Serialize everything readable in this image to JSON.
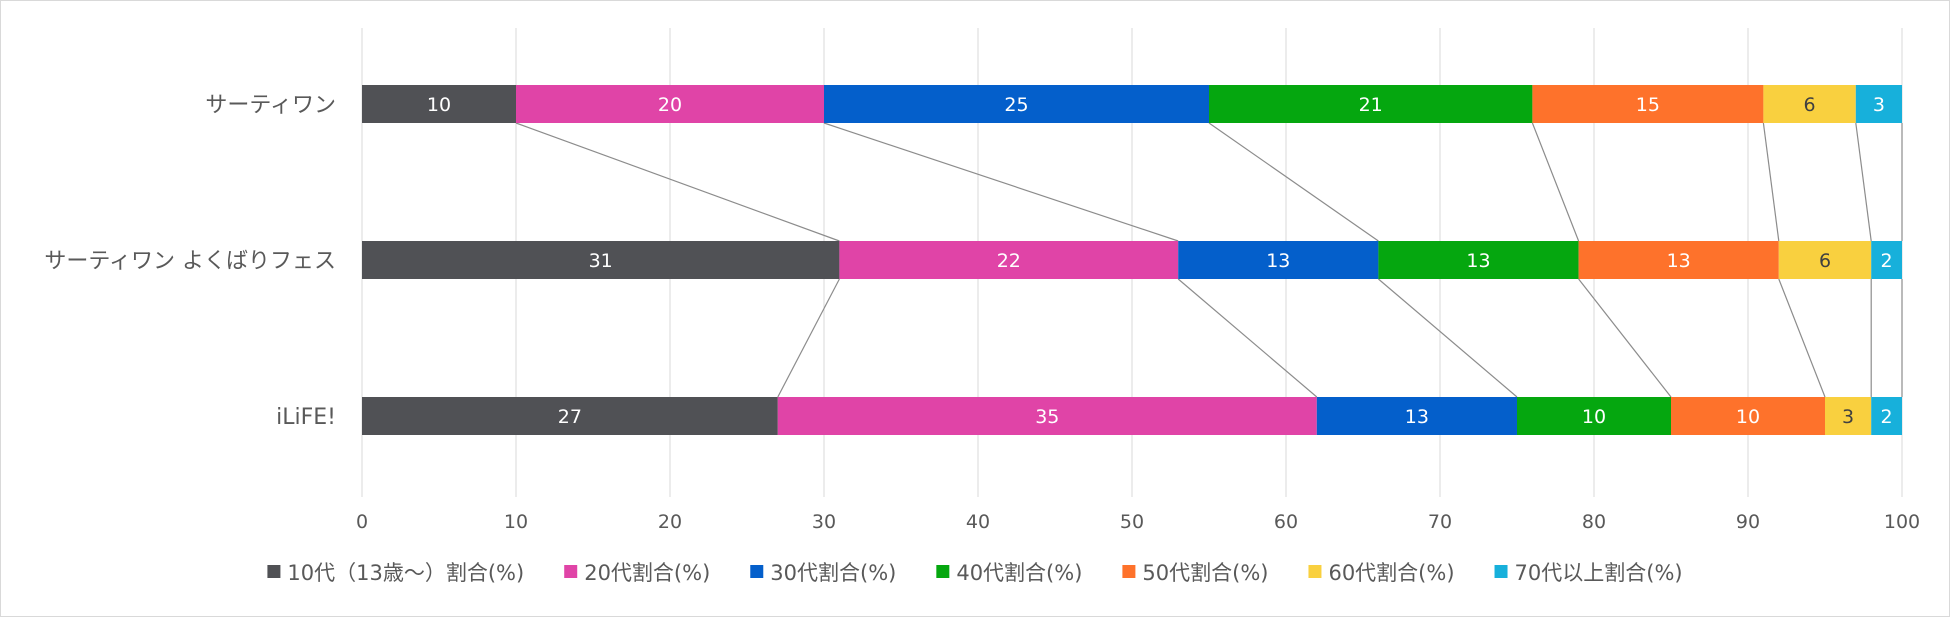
{
  "chart_data": {
    "type": "bar",
    "orientation": "horizontal",
    "stacked": true,
    "title": "",
    "xlabel": "",
    "ylabel": "",
    "xlim": [
      0,
      100
    ],
    "x_ticks": [
      0,
      10,
      20,
      30,
      40,
      50,
      60,
      70,
      80,
      90,
      100
    ],
    "grid": true,
    "series_lines": true,
    "legend_position": "bottom",
    "categories": [
      "サーティワン",
      "サーティワン よくばりフェス",
      "iLiFE!"
    ],
    "series": [
      {
        "name": "10代（13歳〜）割合(%)",
        "color": "#505155",
        "label_color": "#ffffff",
        "values": [
          10,
          31,
          27
        ]
      },
      {
        "name": "20代割合(%)",
        "color": "#e044a7",
        "label_color": "#ffffff",
        "values": [
          20,
          22,
          35
        ]
      },
      {
        "name": "30代割合(%)",
        "color": "#045fcb",
        "label_color": "#ffffff",
        "values": [
          25,
          13,
          13
        ]
      },
      {
        "name": "40代割合(%)",
        "color": "#05a70f",
        "label_color": "#ffffff",
        "values": [
          21,
          13,
          10
        ]
      },
      {
        "name": "50代割合(%)",
        "color": "#fe722b",
        "label_color": "#ffffff",
        "values": [
          15,
          13,
          10
        ]
      },
      {
        "name": "60代割合(%)",
        "color": "#f9d03f",
        "label_color": "#404040",
        "values": [
          6,
          6,
          3
        ]
      },
      {
        "name": "70代以上割合(%)",
        "color": "#17b0db",
        "label_color": "#ffffff",
        "values": [
          3,
          2,
          2
        ]
      }
    ]
  }
}
